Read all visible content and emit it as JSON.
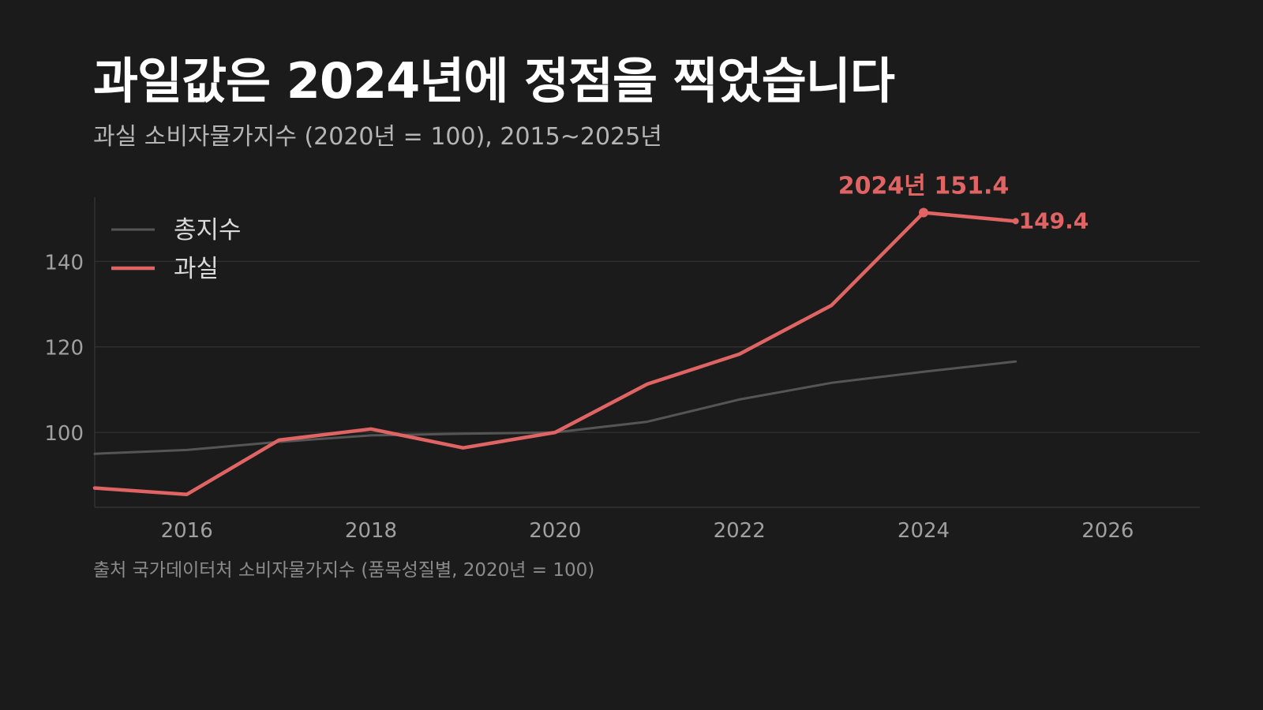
{
  "title": "과일값은 2024년에 정점을 찍었습니다",
  "subtitle": "과실 소비자물가지수 (2020년 = 100), 2015~2025년",
  "source": "출처 국가데이터처 소비자물가지수 (품목성질별, 2020년 = 100)",
  "colors": {
    "background": "#1b1b1b",
    "fruit": "#e06464",
    "total": "#555555",
    "grid": "#333333",
    "tick_text": "#a0a0a0"
  },
  "chart_data": {
    "type": "line",
    "xlim": [
      2015,
      2027
    ],
    "ylim": [
      82.5,
      155
    ],
    "x_ticks": [
      2016,
      2018,
      2020,
      2022,
      2024,
      2026
    ],
    "y_ticks": [
      100,
      120,
      140
    ],
    "grid": "horizontal",
    "legend_position": "top-left",
    "series": [
      {
        "name": "총지수",
        "color": "#555555",
        "x": [
          2015,
          2016,
          2017,
          2018,
          2019,
          2020,
          2021,
          2022,
          2023,
          2024,
          2025
        ],
        "values": [
          95.0,
          95.9,
          97.8,
          99.3,
          99.7,
          100.0,
          102.5,
          107.7,
          111.6,
          114.2,
          116.6
        ]
      },
      {
        "name": "과실",
        "color": "#e06464",
        "x": [
          2015,
          2016,
          2017,
          2018,
          2019,
          2020,
          2021,
          2022,
          2023,
          2024,
          2025
        ],
        "values": [
          87.0,
          85.5,
          98.2,
          100.8,
          96.4,
          100.0,
          111.3,
          118.3,
          129.7,
          151.4,
          149.4
        ]
      }
    ],
    "annotations": [
      {
        "series": "과실",
        "x": 2024,
        "y": 151.4,
        "label": "2024년 151.4"
      },
      {
        "series": "과실",
        "x": 2025,
        "y": 149.4,
        "label": "149.4"
      }
    ]
  }
}
